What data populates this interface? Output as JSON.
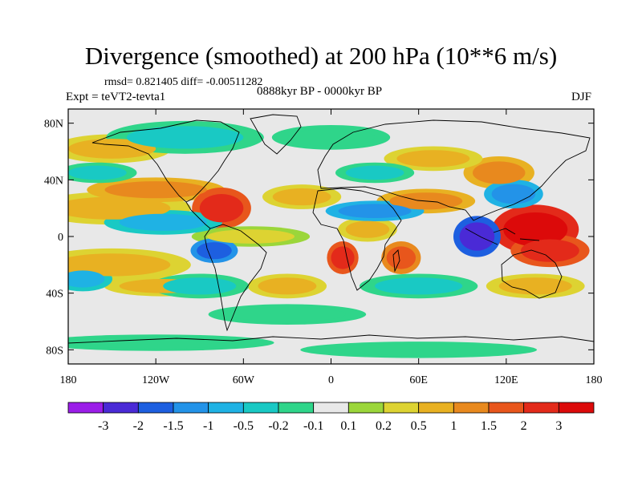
{
  "chart_data": {
    "type": "heatmap",
    "title": "Divergence (smoothed) at 200 hPa (10**6 m/s)",
    "stats_text": "rmsd= 0.821405 diff= -0.00511282",
    "period": "0888kyr BP - 0000kyr BP",
    "experiment": "Expt = teVT2-tevta1",
    "season": "DJF",
    "x_tick_labels": [
      "180",
      "120W",
      "60W",
      "0",
      "60E",
      "120E",
      "180"
    ],
    "x_tick_values": [
      -180,
      -120,
      -60,
      0,
      60,
      120,
      180
    ],
    "y_tick_labels": [
      "80N",
      "40N",
      "0",
      "40S",
      "80S"
    ],
    "y_tick_values": [
      80,
      40,
      0,
      -40,
      -80
    ],
    "xlim": [
      -180,
      180
    ],
    "ylim": [
      -90,
      90
    ],
    "colorbar": {
      "labels": [
        "-3",
        "-2",
        "-1.5",
        "-1",
        "-0.5",
        "-0.2",
        "-0.1",
        "0.1",
        "0.2",
        "0.5",
        "1",
        "1.5",
        "2",
        "3"
      ],
      "colors": [
        "#9b1de8",
        "#4a2ad6",
        "#1d5fe0",
        "#2393e8",
        "#1fb2e4",
        "#19c9c4",
        "#2fd58a",
        "#e8e8e8",
        "#9bd63a",
        "#ddd332",
        "#e8b122",
        "#e8891e",
        "#e8561c",
        "#e32a1a",
        "#dc0a0a"
      ]
    },
    "regions": [
      {
        "lon": -150,
        "lat": 20,
        "rx": 40,
        "ry": 8,
        "level": 10
      },
      {
        "lon": -120,
        "lat": 33,
        "rx": 35,
        "ry": 6,
        "level": 11
      },
      {
        "lon": -75,
        "lat": 20,
        "rx": 15,
        "ry": 10,
        "level": 13
      },
      {
        "lon": -20,
        "lat": 28,
        "rx": 20,
        "ry": 6,
        "level": 10
      },
      {
        "lon": 65,
        "lat": 25,
        "rx": 25,
        "ry": 6,
        "level": 11
      },
      {
        "lon": 115,
        "lat": 45,
        "rx": 18,
        "ry": 8,
        "level": 11
      },
      {
        "lon": 140,
        "lat": 5,
        "rx": 22,
        "ry": 12,
        "level": 14
      },
      {
        "lon": 150,
        "lat": -10,
        "rx": 20,
        "ry": 8,
        "level": 13
      },
      {
        "lon": 8,
        "lat": -15,
        "rx": 8,
        "ry": 8,
        "level": 13
      },
      {
        "lon": 48,
        "lat": -15,
        "rx": 10,
        "ry": 8,
        "level": 12
      },
      {
        "lon": -150,
        "lat": -20,
        "rx": 40,
        "ry": 8,
        "level": 10
      },
      {
        "lon": -115,
        "lat": -35,
        "rx": 30,
        "ry": 5,
        "level": 10
      },
      {
        "lon": -30,
        "lat": -35,
        "rx": 20,
        "ry": 6,
        "level": 10
      },
      {
        "lon": 140,
        "lat": -35,
        "rx": 25,
        "ry": 6,
        "level": 10
      },
      {
        "lon": -150,
        "lat": 62,
        "rx": 30,
        "ry": 7,
        "level": 10
      },
      {
        "lon": 70,
        "lat": 55,
        "rx": 25,
        "ry": 6,
        "level": 10
      },
      {
        "lon": -55,
        "lat": 0,
        "rx": 30,
        "ry": 5,
        "level": 9
      },
      {
        "lon": 25,
        "lat": 5,
        "rx": 15,
        "ry": 6,
        "level": 10
      },
      {
        "lon": -115,
        "lat": 10,
        "rx": 30,
        "ry": 6,
        "level": 4
      },
      {
        "lon": 30,
        "lat": 18,
        "rx": 25,
        "ry": 5,
        "level": 3
      },
      {
        "lon": 100,
        "lat": 0,
        "rx": 12,
        "ry": 10,
        "level": 1
      },
      {
        "lon": -80,
        "lat": -10,
        "rx": 12,
        "ry": 6,
        "level": 2
      },
      {
        "lon": 125,
        "lat": 30,
        "rx": 15,
        "ry": 7,
        "level": 3
      },
      {
        "lon": -170,
        "lat": -30,
        "rx": 15,
        "ry": 6,
        "level": 4
      },
      {
        "lon": -90,
        "lat": -35,
        "rx": 25,
        "ry": 6,
        "level": 5
      },
      {
        "lon": 60,
        "lat": -35,
        "rx": 30,
        "ry": 6,
        "level": 5
      },
      {
        "lon": -100,
        "lat": 70,
        "rx": 40,
        "ry": 8,
        "level": 5
      },
      {
        "lon": 0,
        "lat": 70,
        "rx": 30,
        "ry": 6,
        "level": 6
      },
      {
        "lon": -30,
        "lat": -55,
        "rx": 40,
        "ry": 5,
        "level": 6
      },
      {
        "lon": -120,
        "lat": -75,
        "rx": 60,
        "ry": 4,
        "level": 6
      },
      {
        "lon": 60,
        "lat": -80,
        "rx": 60,
        "ry": 4,
        "level": 6
      },
      {
        "lon": 30,
        "lat": 45,
        "rx": 20,
        "ry": 5,
        "level": 5
      },
      {
        "lon": -160,
        "lat": 45,
        "rx": 20,
        "ry": 5,
        "level": 5
      }
    ]
  }
}
